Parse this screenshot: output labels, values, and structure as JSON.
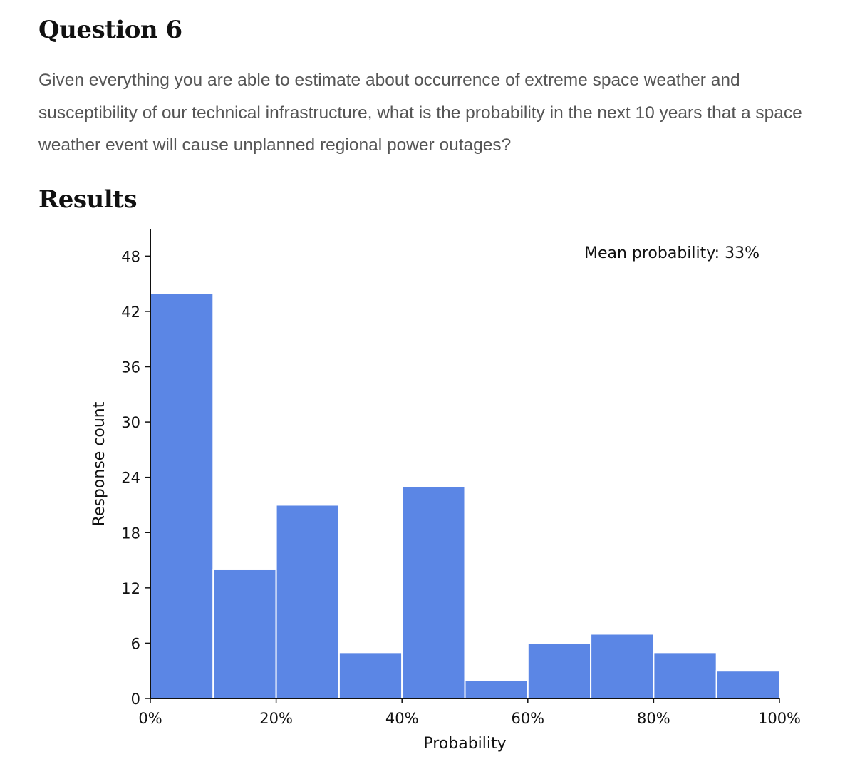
{
  "question": {
    "title": "Question 6",
    "text": "Given everything you are able to estimate about occurrence of extreme space weather and susceptibility of our technical infrastructure, what is the probability in the next 10 years that a space weather event will cause unplanned regional power outages?"
  },
  "results": {
    "title": "Results"
  },
  "colors": {
    "bar": "#5b86e5",
    "axis": "#111111",
    "text": "#111111"
  },
  "chart_data": {
    "type": "bar",
    "title": "",
    "xlabel": "Probability",
    "ylabel": "Response count",
    "annotation": "Mean probability: 33%",
    "bins": [
      {
        "from": 0,
        "to": 10,
        "count": 44
      },
      {
        "from": 10,
        "to": 20,
        "count": 14
      },
      {
        "from": 20,
        "to": 30,
        "count": 21
      },
      {
        "from": 30,
        "to": 40,
        "count": 5
      },
      {
        "from": 40,
        "to": 50,
        "count": 23
      },
      {
        "from": 50,
        "to": 60,
        "count": 2
      },
      {
        "from": 60,
        "to": 70,
        "count": 6
      },
      {
        "from": 70,
        "to": 80,
        "count": 7
      },
      {
        "from": 80,
        "to": 90,
        "count": 5
      },
      {
        "from": 90,
        "to": 100,
        "count": 3
      }
    ],
    "xlim": [
      0,
      100
    ],
    "ylim": [
      0,
      51
    ],
    "xticks": [
      0,
      20,
      40,
      60,
      80,
      100
    ],
    "xtick_labels": [
      "0%",
      "20%",
      "40%",
      "60%",
      "80%",
      "100%"
    ],
    "yticks": [
      0,
      6,
      12,
      18,
      24,
      30,
      36,
      42,
      48
    ],
    "ytick_labels": [
      "0",
      "6",
      "12",
      "18",
      "24",
      "30",
      "36",
      "42",
      "48"
    ],
    "grid": false,
    "legend": false
  }
}
